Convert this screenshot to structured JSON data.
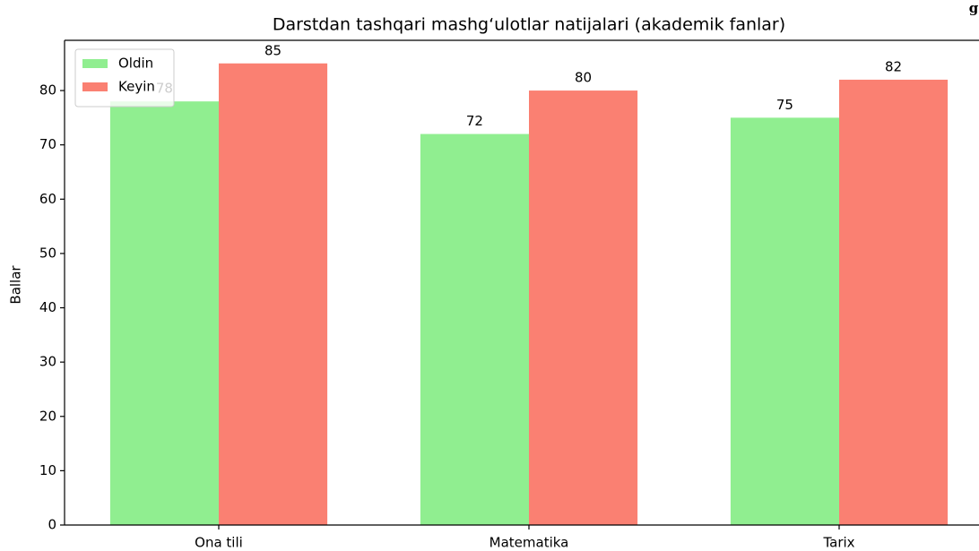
{
  "chart_data": {
    "type": "bar",
    "title": "Darstdan tashqari mashg‘ulotlar natijalari (akademik fanlar)",
    "ylabel": "Ballar",
    "corner_text": "g",
    "categories": [
      "Ona tili",
      "Matematika",
      "Tarix"
    ],
    "series": [
      {
        "name": "Oldin",
        "color": "#90ee90",
        "values": [
          78,
          72,
          75
        ]
      },
      {
        "name": "Keyin",
        "color": "#fa8072",
        "values": [
          85,
          80,
          82
        ]
      }
    ],
    "ylim": [
      0,
      89.25
    ],
    "yticks": [
      0,
      10,
      20,
      30,
      40,
      50,
      60,
      70,
      80
    ],
    "grid": false,
    "legend": "upper left"
  }
}
